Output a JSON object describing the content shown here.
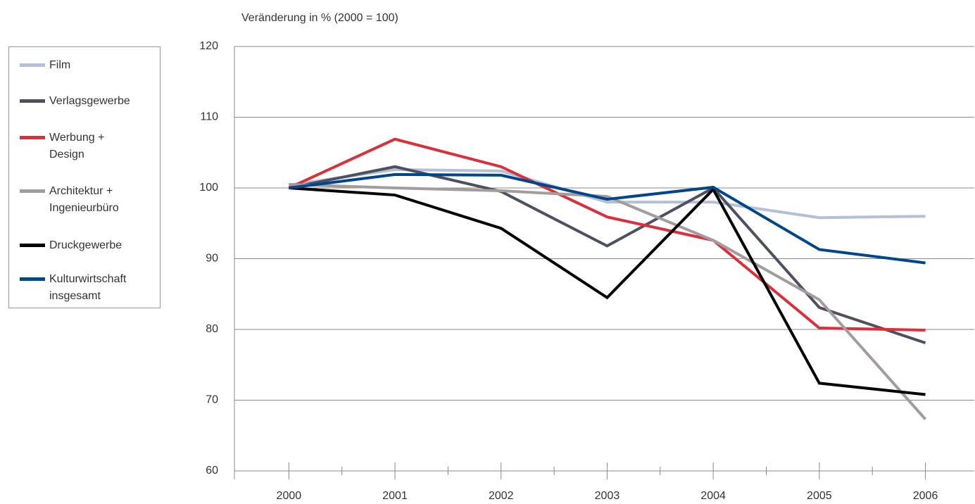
{
  "chart_data": {
    "type": "line",
    "title": "Veränderung in % (2000 = 100)",
    "categories": [
      "2000",
      "2001",
      "2002",
      "2003",
      "2004",
      "2005",
      "2006"
    ],
    "series": [
      {
        "name": "Film",
        "color": "#b4bfd8",
        "values": [
          100.4,
          102.6,
          102.4,
          98,
          98,
          95.8,
          96
        ]
      },
      {
        "name": "Verlagsgewerbe",
        "color": "#4d5060",
        "values": [
          100,
          103,
          99.5,
          91.8,
          100,
          83.1,
          78.1
        ]
      },
      {
        "name": "Werbung + Design",
        "color": "#d9303a",
        "values": [
          100,
          106.9,
          103,
          95.9,
          92.6,
          80.2,
          79.9
        ]
      },
      {
        "name": "Architektur + Ingenieurbüro",
        "color": "#a49c9c",
        "values": [
          100.5,
          100,
          99.6,
          98.8,
          92.6,
          84.2,
          67.3
        ]
      },
      {
        "name": "Druckgewerbe",
        "color": "#000000",
        "values": [
          100,
          99,
          94.3,
          84.5,
          99.8,
          72.4,
          70.8
        ]
      },
      {
        "name": "Kulturwirtschaft insgesamt",
        "color": "#00468c",
        "values": [
          100,
          101.9,
          101.8,
          98.4,
          100.1,
          91.3,
          89.4
        ]
      }
    ],
    "ylim": [
      60,
      120
    ],
    "yticks": [
      60,
      70,
      80,
      90,
      100,
      110,
      120
    ],
    "grid": true,
    "legend": "left"
  }
}
